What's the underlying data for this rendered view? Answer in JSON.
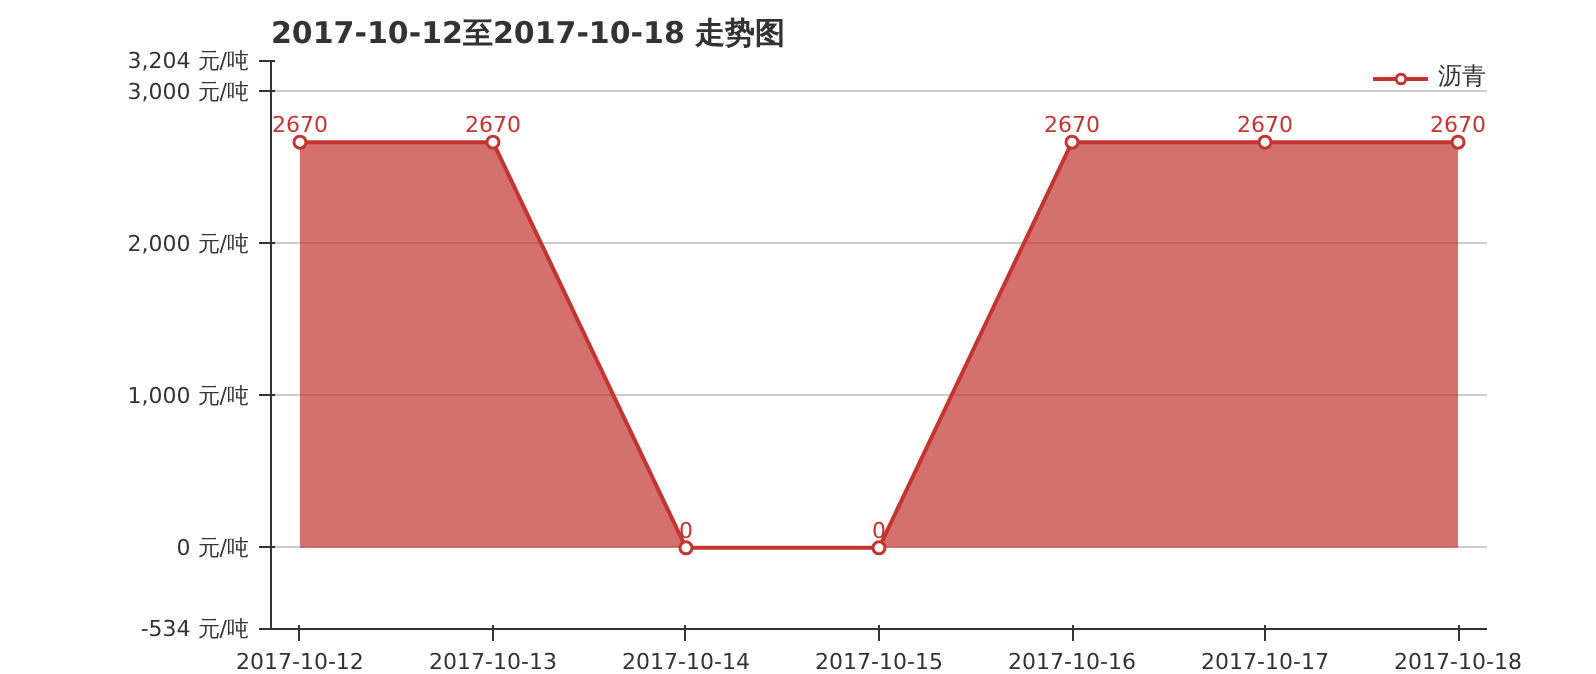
{
  "chart_data": {
    "type": "area",
    "title": "2017-10-12至2017-10-18 走势图",
    "categories": [
      "2017-10-12",
      "2017-10-13",
      "2017-10-14",
      "2017-10-15",
      "2017-10-16",
      "2017-10-17",
      "2017-10-18"
    ],
    "series": [
      {
        "name": "沥青",
        "color": "#c23531",
        "values": [
          2670,
          2670,
          0,
          0,
          2670,
          2670,
          2670
        ]
      }
    ],
    "ylim": [
      -534,
      3204
    ],
    "yticks": [
      {
        "value": -534,
        "label": "-534 元/吨"
      },
      {
        "value": 0,
        "label": "0 元/吨"
      },
      {
        "value": 1000,
        "label": "1,000 元/吨"
      },
      {
        "value": 2000,
        "label": "2,000 元/吨"
      },
      {
        "value": 3000,
        "label": "3,000 元/吨"
      },
      {
        "value": 3204,
        "label": "3,204 元/吨"
      }
    ],
    "grid": "y",
    "legend": "top right",
    "marker": "circle",
    "line_style": "solid",
    "data_labels": true
  }
}
